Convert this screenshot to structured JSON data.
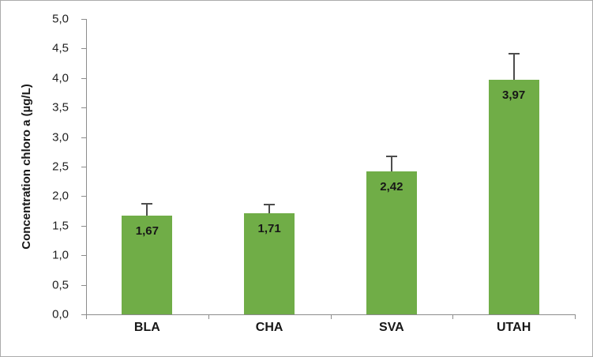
{
  "chart_data": {
    "type": "bar",
    "title": "",
    "categories": [
      "BLA",
      "CHA",
      "SVA",
      "UTAH"
    ],
    "values": [
      1.67,
      1.71,
      2.42,
      3.97
    ],
    "value_labels": [
      "1,67",
      "1,71",
      "2,42",
      "3,97"
    ],
    "error_upper": [
      0.2,
      0.15,
      0.25,
      0.44
    ],
    "xlabel": "",
    "ylabel": "Concentration chloro a (µg/L)",
    "ylim": [
      0,
      5
    ],
    "ytick_step": 0.5,
    "ytick_labels": [
      "0,0",
      "0,5",
      "1,0",
      "1,5",
      "2,0",
      "2,5",
      "3,0",
      "3,5",
      "4,0",
      "4,5",
      "5,0"
    ],
    "grid": false,
    "legend_position": "none",
    "colors": {
      "bar_fill": "#70ad47",
      "error_bar": "#4d4d4d",
      "axis": "#8c8c8c",
      "text": "#171717",
      "frame_border": "#ababab",
      "background": "#ffffff"
    }
  }
}
